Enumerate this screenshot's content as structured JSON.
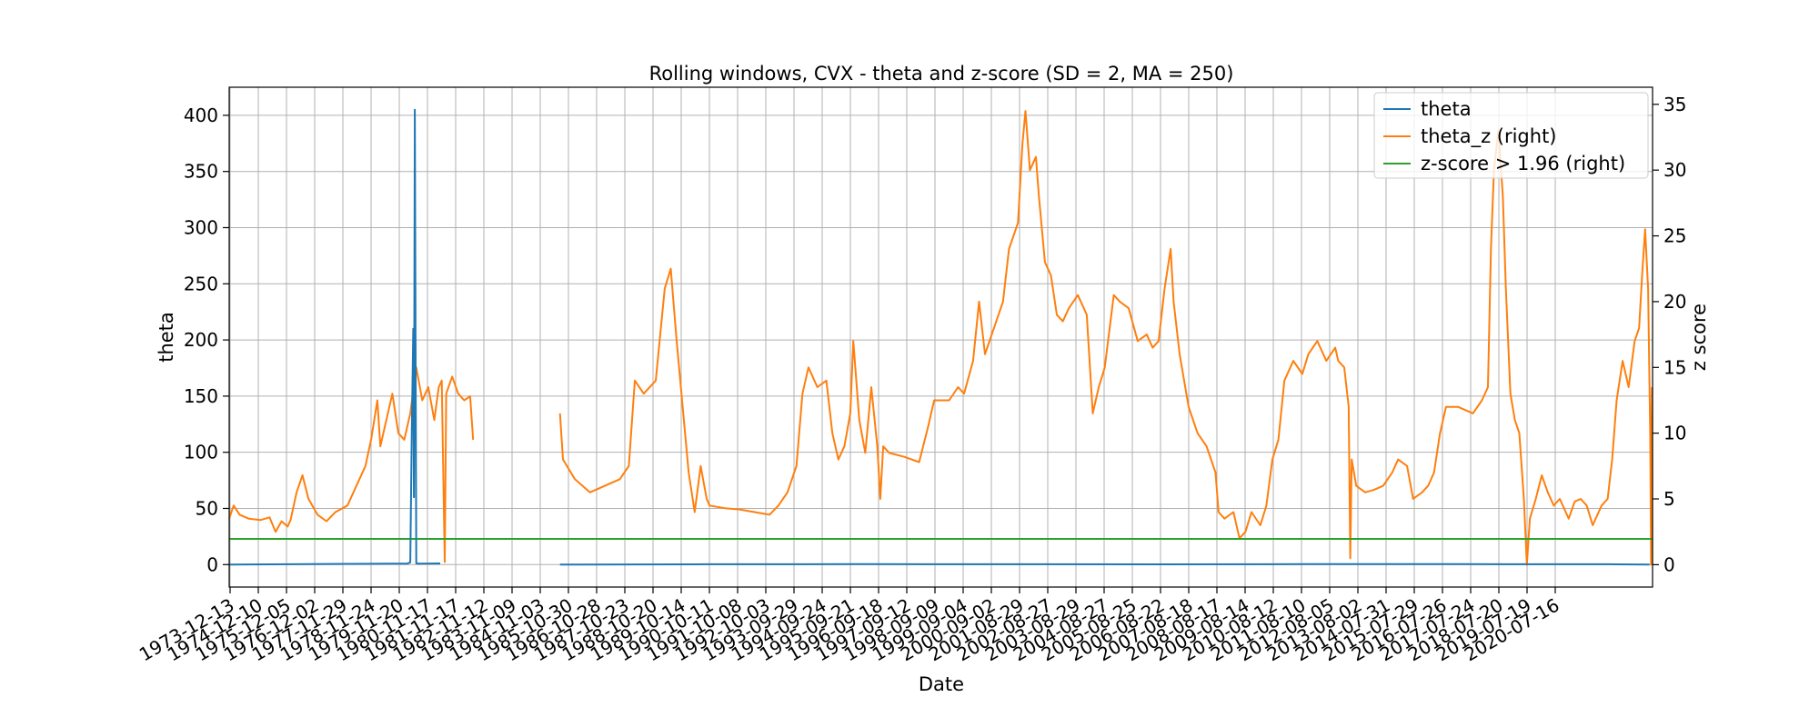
{
  "chart_data": {
    "type": "line",
    "title": "Rolling windows, CVX - theta and z-score (SD = 2, MA = 250)",
    "xlabel": "Date",
    "ylabel": "theta",
    "ylabel_right": "z score",
    "x_range": [
      1973.95,
      2021.5
    ],
    "ylim": [
      -20,
      425
    ],
    "ylim_right": [
      -1.7,
      36.3
    ],
    "grid": true,
    "legend_position": "top-right",
    "yticks": [
      0,
      50,
      100,
      150,
      200,
      250,
      300,
      350,
      400
    ],
    "yticks_right": [
      0,
      5,
      10,
      15,
      20,
      25,
      30,
      35
    ],
    "xtick_labels": [
      "1973-12-13",
      "1974-12-10",
      "1975-12-05",
      "1976-12-02",
      "1977-11-29",
      "1978-11-24",
      "1979-11-20",
      "1980-11-17",
      "1981-11-17",
      "1982-11-12",
      "1983-11-09",
      "1984-11-03",
      "1985-10-30",
      "1986-10-28",
      "1987-10-23",
      "1988-10-20",
      "1989-10-14",
      "1990-10-11",
      "1991-10-08",
      "1992-10-03",
      "1993-09-29",
      "1994-09-24",
      "1995-09-21",
      "1996-09-18",
      "1997-09-12",
      "1998-09-09",
      "1999-09-04",
      "2000-09-02",
      "2001-08-29",
      "2002-08-27",
      "2003-08-29",
      "2004-08-27",
      "2005-08-25",
      "2006-08-22",
      "2007-08-18",
      "2008-08-17",
      "2009-08-14",
      "2010-08-12",
      "2011-08-10",
      "2012-08-05",
      "2013-08-02",
      "2014-07-31",
      "2015-07-29",
      "2016-07-26",
      "2017-07-24",
      "2018-07-20",
      "2019-07-19",
      "2020-07-16"
    ],
    "series": [
      {
        "name": "theta",
        "axis": "left",
        "color": "#1f77b4",
        "segments": [
          [
            [
              1973.95,
              0
            ],
            [
              1976.0,
              0.3
            ],
            [
              1978.0,
              0.6
            ],
            [
              1979.3,
              0.8
            ],
            [
              1979.9,
              0.9
            ],
            [
              1980.0,
              2
            ],
            [
              1980.05,
              120
            ],
            [
              1980.1,
              210
            ],
            [
              1980.12,
              60
            ],
            [
              1980.15,
              405
            ],
            [
              1980.2,
              1
            ],
            [
              1980.3,
              0.9
            ],
            [
              1981.0,
              1
            ]
          ],
          [
            [
              1985.0,
              0
            ],
            [
              1990.0,
              0.3
            ],
            [
              1995.0,
              0.4
            ],
            [
              2000.0,
              0.3
            ],
            [
              2005.0,
              0.2
            ],
            [
              2010.0,
              0.4
            ],
            [
              2015.0,
              0.4
            ],
            [
              2020.0,
              0.3
            ],
            [
              2021.4,
              0
            ]
          ]
        ]
      },
      {
        "name": "theta_z (right)",
        "axis": "right",
        "color": "#ff7f0e",
        "segments": [
          [
            [
              1973.95,
              3.5
            ],
            [
              1974.1,
              4.5
            ],
            [
              1974.3,
              3.8
            ],
            [
              1974.6,
              3.5
            ],
            [
              1975.0,
              3.4
            ],
            [
              1975.3,
              3.6
            ],
            [
              1975.5,
              2.5
            ],
            [
              1975.7,
              3.3
            ],
            [
              1975.9,
              2.9
            ],
            [
              1976.0,
              3.4
            ],
            [
              1976.2,
              5.5
            ],
            [
              1976.4,
              6.8
            ],
            [
              1976.6,
              5.0
            ],
            [
              1976.9,
              3.8
            ],
            [
              1977.2,
              3.3
            ],
            [
              1977.5,
              4.0
            ],
            [
              1977.9,
              4.5
            ],
            [
              1978.2,
              6.0
            ],
            [
              1978.5,
              7.5
            ],
            [
              1978.7,
              9.6
            ],
            [
              1978.9,
              12.5
            ],
            [
              1979.0,
              9.0
            ],
            [
              1979.2,
              11.0
            ],
            [
              1979.4,
              13.0
            ],
            [
              1979.6,
              10.0
            ],
            [
              1979.8,
              9.5
            ],
            [
              1980.0,
              11.5
            ],
            [
              1980.2,
              15.0
            ],
            [
              1980.4,
              12.5
            ],
            [
              1980.6,
              13.5
            ],
            [
              1980.8,
              11.0
            ],
            [
              1980.95,
              13.5
            ],
            [
              1981.05,
              14.0
            ],
            [
              1981.15,
              0.2
            ],
            [
              1981.2,
              13.0
            ],
            [
              1981.4,
              14.3
            ],
            [
              1981.6,
              13.0
            ],
            [
              1981.8,
              12.5
            ],
            [
              1982.0,
              12.8
            ],
            [
              1982.1,
              9.5
            ]
          ],
          [
            [
              1985.0,
              11.5
            ],
            [
              1985.1,
              8.0
            ],
            [
              1985.5,
              6.5
            ],
            [
              1986.0,
              5.5
            ],
            [
              1986.5,
              6.0
            ],
            [
              1987.0,
              6.5
            ],
            [
              1987.3,
              7.5
            ],
            [
              1987.5,
              14.0
            ],
            [
              1987.8,
              13.0
            ],
            [
              1988.2,
              14.0
            ],
            [
              1988.5,
              21.0
            ],
            [
              1988.7,
              22.5
            ],
            [
              1988.9,
              17.0
            ],
            [
              1989.1,
              12.0
            ],
            [
              1989.3,
              7.0
            ],
            [
              1989.5,
              4.0
            ],
            [
              1989.7,
              7.5
            ],
            [
              1989.9,
              5.0
            ],
            [
              1990.0,
              4.5
            ],
            [
              1990.5,
              4.3
            ],
            [
              1991.0,
              4.2
            ],
            [
              1991.5,
              4.0
            ],
            [
              1992.0,
              3.8
            ],
            [
              1992.3,
              4.5
            ],
            [
              1992.6,
              5.5
            ],
            [
              1992.9,
              7.5
            ],
            [
              1993.1,
              13.0
            ],
            [
              1993.3,
              15.0
            ],
            [
              1993.6,
              13.5
            ],
            [
              1993.9,
              14.0
            ],
            [
              1994.1,
              10.0
            ],
            [
              1994.3,
              8.0
            ],
            [
              1994.5,
              9.0
            ],
            [
              1994.7,
              11.5
            ],
            [
              1994.8,
              17.0
            ],
            [
              1995.0,
              11.0
            ],
            [
              1995.2,
              8.5
            ],
            [
              1995.4,
              13.5
            ],
            [
              1995.6,
              9.0
            ],
            [
              1995.7,
              5.0
            ],
            [
              1995.8,
              9.0
            ],
            [
              1996.0,
              8.5
            ],
            [
              1996.5,
              8.2
            ],
            [
              1997.0,
              7.8
            ],
            [
              1997.3,
              10.5
            ],
            [
              1997.5,
              12.5
            ],
            [
              1998.0,
              12.5
            ],
            [
              1998.3,
              13.5
            ],
            [
              1998.5,
              13.0
            ],
            [
              1998.8,
              15.5
            ],
            [
              1999.0,
              20.0
            ],
            [
              1999.2,
              16.0
            ],
            [
              1999.5,
              18.0
            ],
            [
              1999.8,
              20.0
            ],
            [
              2000.0,
              24.0
            ],
            [
              2000.3,
              26.0
            ],
            [
              2000.45,
              32.0
            ],
            [
              2000.55,
              34.5
            ],
            [
              2000.7,
              30.0
            ],
            [
              2000.9,
              31.0
            ],
            [
              2001.0,
              28.0
            ],
            [
              2001.2,
              23.0
            ],
            [
              2001.4,
              22.0
            ],
            [
              2001.6,
              19.0
            ],
            [
              2001.8,
              18.5
            ],
            [
              2002.0,
              19.5
            ],
            [
              2002.3,
              20.5
            ],
            [
              2002.6,
              19.0
            ],
            [
              2002.8,
              11.5
            ],
            [
              2003.0,
              13.5
            ],
            [
              2003.2,
              15.0
            ],
            [
              2003.5,
              20.5
            ],
            [
              2003.7,
              20.0
            ],
            [
              2004.0,
              19.5
            ],
            [
              2004.3,
              17.0
            ],
            [
              2004.6,
              17.5
            ],
            [
              2004.8,
              16.5
            ],
            [
              2005.0,
              17.0
            ],
            [
              2005.2,
              21.0
            ],
            [
              2005.4,
              24.0
            ],
            [
              2005.5,
              20.0
            ],
            [
              2005.7,
              16.0
            ],
            [
              2006.0,
              12.0
            ],
            [
              2006.3,
              10.0
            ],
            [
              2006.6,
              9.0
            ],
            [
              2006.9,
              7.0
            ],
            [
              2007.0,
              4.0
            ],
            [
              2007.2,
              3.5
            ],
            [
              2007.5,
              4.0
            ],
            [
              2007.7,
              2.0
            ],
            [
              2007.9,
              2.5
            ],
            [
              2008.1,
              4.0
            ],
            [
              2008.4,
              3.0
            ],
            [
              2008.6,
              4.5
            ],
            [
              2008.8,
              8.0
            ],
            [
              2009.0,
              9.5
            ],
            [
              2009.2,
              14.0
            ],
            [
              2009.5,
              15.5
            ],
            [
              2009.8,
              14.5
            ],
            [
              2010.0,
              16.0
            ],
            [
              2010.3,
              17.0
            ],
            [
              2010.6,
              15.5
            ],
            [
              2010.9,
              16.5
            ],
            [
              2011.0,
              15.5
            ],
            [
              2011.2,
              15.0
            ],
            [
              2011.35,
              12.0
            ],
            [
              2011.4,
              0.5
            ],
            [
              2011.45,
              8.0
            ],
            [
              2011.6,
              6.0
            ],
            [
              2011.9,
              5.5
            ],
            [
              2012.2,
              5.7
            ],
            [
              2012.5,
              6.0
            ],
            [
              2012.8,
              7.0
            ],
            [
              2013.0,
              8.0
            ],
            [
              2013.3,
              7.5
            ],
            [
              2013.5,
              5.0
            ],
            [
              2013.8,
              5.5
            ],
            [
              2014.0,
              6.0
            ],
            [
              2014.2,
              7.0
            ],
            [
              2014.4,
              10.0
            ],
            [
              2014.6,
              12.0
            ],
            [
              2015.0,
              12.0
            ],
            [
              2015.5,
              11.5
            ],
            [
              2015.8,
              12.5
            ],
            [
              2016.0,
              13.5
            ],
            [
              2016.1,
              24.0
            ],
            [
              2016.2,
              30.0
            ],
            [
              2016.35,
              33.0
            ],
            [
              2016.5,
              28.0
            ],
            [
              2016.6,
              21.0
            ],
            [
              2016.75,
              13.0
            ],
            [
              2016.9,
              11.0
            ],
            [
              2017.05,
              10.0
            ],
            [
              2017.2,
              5.0
            ],
            [
              2017.3,
              0.0
            ],
            [
              2017.4,
              3.5
            ],
            [
              2017.6,
              5.0
            ],
            [
              2017.8,
              6.8
            ],
            [
              2018.0,
              5.5
            ],
            [
              2018.2,
              4.5
            ],
            [
              2018.4,
              5.0
            ],
            [
              2018.7,
              3.5
            ],
            [
              2018.9,
              4.8
            ],
            [
              2019.1,
              5.0
            ],
            [
              2019.3,
              4.5
            ],
            [
              2019.5,
              3.0
            ],
            [
              2019.8,
              4.5
            ],
            [
              2020.0,
              5.0
            ],
            [
              2020.15,
              8.0
            ],
            [
              2020.3,
              12.5
            ],
            [
              2020.5,
              15.5
            ],
            [
              2020.7,
              13.5
            ],
            [
              2020.9,
              17.0
            ],
            [
              2021.05,
              18.0
            ],
            [
              2021.15,
              22.0
            ],
            [
              2021.25,
              25.5
            ],
            [
              2021.35,
              21.0
            ],
            [
              2021.42,
              10.0
            ],
            [
              2021.45,
              0.0
            ],
            [
              2021.48,
              13.5
            ]
          ]
        ]
      },
      {
        "name": "z-score > 1.96 (right)",
        "axis": "right",
        "color": "#2ca02c",
        "segments": [
          [
            [
              1973.95,
              1.96
            ],
            [
              2021.5,
              1.96
            ]
          ]
        ]
      }
    ]
  }
}
